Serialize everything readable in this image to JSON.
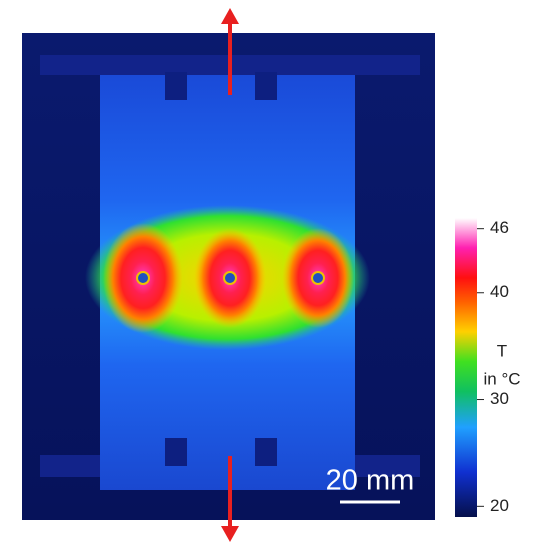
{
  "colorbar": {
    "title_lines": [
      "T",
      "in °C"
    ],
    "lim": [
      19,
      47
    ],
    "ticks": [
      20,
      30,
      40,
      46
    ]
  },
  "scale_bar": {
    "label": "20 mm"
  }
}
